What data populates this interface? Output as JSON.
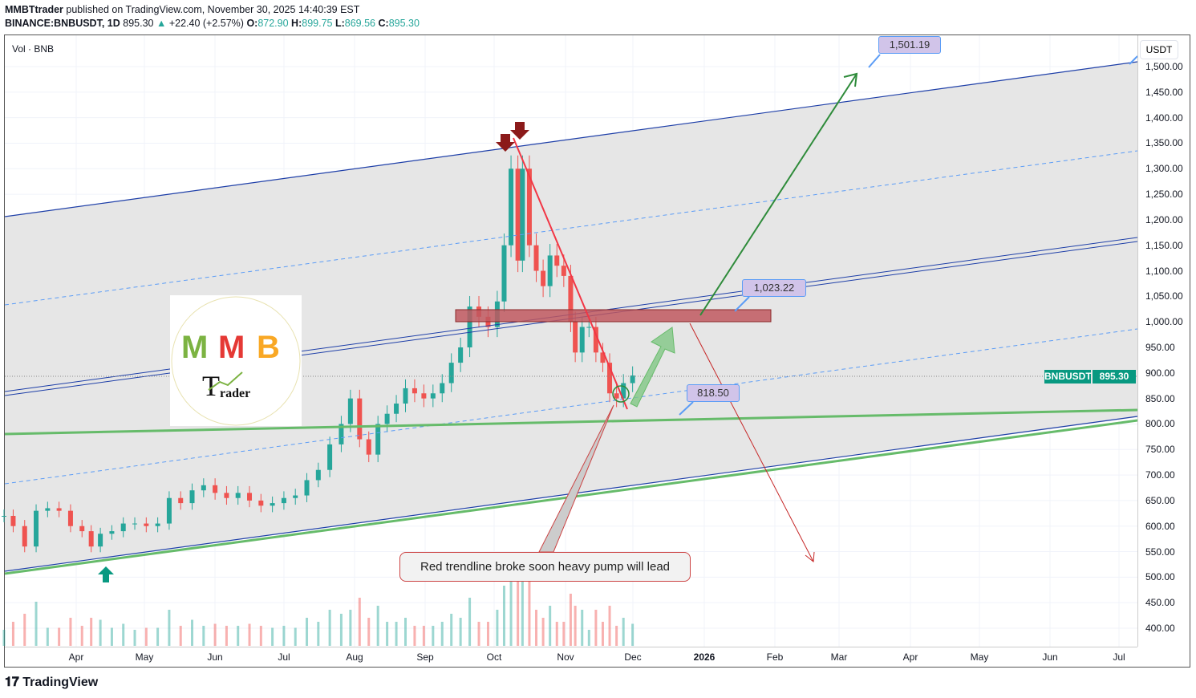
{
  "header": {
    "author": "MMBTtrader",
    "published": "published on TradingView.com, November 30, 2025 14:40:39 EST",
    "symbol": "BINANCE:BNBUSDT, 1D",
    "last": "895.30",
    "change": "+22.40 (+2.57%)",
    "o_label": "O:",
    "o": "872.90",
    "h_label": "H:",
    "h": "899.75",
    "l_label": "L:",
    "l": "869.56",
    "c_label": "C:",
    "c": "895.30"
  },
  "volume_label": "Vol · BNB",
  "currency": "USDT",
  "price_tag": {
    "symbol": "BNBUSDT",
    "price": "895.30"
  },
  "annotations": {
    "target_high": "1,501.19",
    "target_mid": "1,023.22",
    "support": "818.50",
    "note": "Red trendline broke soon heavy pump will lead"
  },
  "logo_text": "MMB Trader",
  "footer": "TradingView",
  "colors": {
    "up": "#26a69a",
    "down": "#ef5350",
    "channel": "#1e3fa8",
    "dashed": "#5b9cf6",
    "green_line": "#66bb6a",
    "zone": "#c0585f"
  },
  "chart_data": {
    "type": "candlestick",
    "ylim": [
      400,
      1500
    ],
    "y_ticks": [
      "1,500.00",
      "1,450.00",
      "1,400.00",
      "1,350.00",
      "1,300.00",
      "1,250.00",
      "1,200.00",
      "1,150.00",
      "1,100.00",
      "1,050.00",
      "1,000.00",
      "950.00",
      "900.00",
      "850.00",
      "800.00",
      "750.00",
      "700.00",
      "650.00",
      "600.00",
      "550.00",
      "500.00",
      "450.00",
      "400.00"
    ],
    "x_ticks": [
      "Apr",
      "May",
      "Jun",
      "Jul",
      "Aug",
      "Sep",
      "Oct",
      "Nov",
      "Dec",
      "2026",
      "Feb",
      "Mar",
      "Apr",
      "May",
      "Jun",
      "Jul"
    ],
    "closes": [
      [
        "2025-03-01",
        620
      ],
      [
        "2025-03-05",
        600
      ],
      [
        "2025-03-10",
        560
      ],
      [
        "2025-03-15",
        630
      ],
      [
        "2025-03-20",
        635
      ],
      [
        "2025-03-25",
        630
      ],
      [
        "2025-03-30",
        600
      ],
      [
        "2025-04-04",
        590
      ],
      [
        "2025-04-08",
        560
      ],
      [
        "2025-04-12",
        585
      ],
      [
        "2025-04-17",
        590
      ],
      [
        "2025-04-22",
        605
      ],
      [
        "2025-04-27",
        605
      ],
      [
        "2025-05-02",
        600
      ],
      [
        "2025-05-07",
        605
      ],
      [
        "2025-05-12",
        655
      ],
      [
        "2025-05-17",
        645
      ],
      [
        "2025-05-22",
        670
      ],
      [
        "2025-05-27",
        680
      ],
      [
        "2025-06-01",
        665
      ],
      [
        "2025-06-06",
        655
      ],
      [
        "2025-06-11",
        665
      ],
      [
        "2025-06-16",
        650
      ],
      [
        "2025-06-21",
        640
      ],
      [
        "2025-06-26",
        645
      ],
      [
        "2025-07-01",
        655
      ],
      [
        "2025-07-06",
        660
      ],
      [
        "2025-07-11",
        690
      ],
      [
        "2025-07-16",
        710
      ],
      [
        "2025-07-21",
        760
      ],
      [
        "2025-07-26",
        800
      ],
      [
        "2025-07-30",
        850
      ],
      [
        "2025-08-03",
        770
      ],
      [
        "2025-08-07",
        740
      ],
      [
        "2025-08-11",
        800
      ],
      [
        "2025-08-15",
        820
      ],
      [
        "2025-08-19",
        840
      ],
      [
        "2025-08-23",
        870
      ],
      [
        "2025-08-27",
        860
      ],
      [
        "2025-08-31",
        850
      ],
      [
        "2025-09-04",
        860
      ],
      [
        "2025-09-08",
        880
      ],
      [
        "2025-09-12",
        920
      ],
      [
        "2025-09-16",
        950
      ],
      [
        "2025-09-20",
        1030
      ],
      [
        "2025-09-24",
        1010
      ],
      [
        "2025-09-28",
        990
      ],
      [
        "2025-10-02",
        1040
      ],
      [
        "2025-10-05",
        1150
      ],
      [
        "2025-10-08",
        1300
      ],
      [
        "2025-10-11",
        1120
      ],
      [
        "2025-10-13",
        1300
      ],
      [
        "2025-10-16",
        1150
      ],
      [
        "2025-10-19",
        1100
      ],
      [
        "2025-10-22",
        1070
      ],
      [
        "2025-10-25",
        1130
      ],
      [
        "2025-10-28",
        1110
      ],
      [
        "2025-10-31",
        1090
      ],
      [
        "2025-11-03",
        1000
      ],
      [
        "2025-11-05",
        940
      ],
      [
        "2025-11-08",
        990
      ],
      [
        "2025-11-11",
        990
      ],
      [
        "2025-11-14",
        940
      ],
      [
        "2025-11-17",
        920
      ],
      [
        "2025-11-20",
        860
      ],
      [
        "2025-11-23",
        850
      ],
      [
        "2025-11-26",
        880
      ],
      [
        "2025-11-30",
        895
      ]
    ]
  }
}
